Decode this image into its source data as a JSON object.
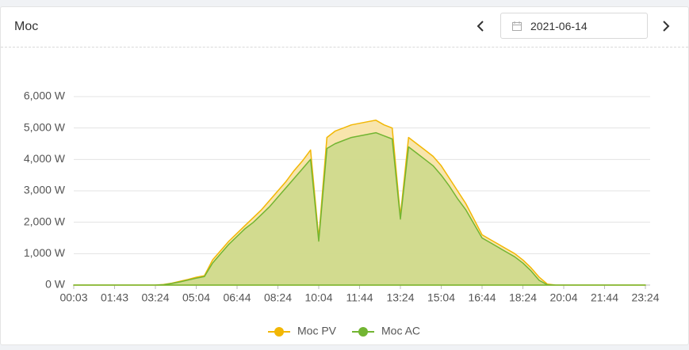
{
  "header": {
    "title": "Moc",
    "date": "2021-06-14"
  },
  "chart_data": {
    "type": "area",
    "categories": [
      "00:03",
      null,
      null,
      null,
      null,
      "01:43",
      null,
      null,
      null,
      null,
      "03:24",
      null,
      null,
      null,
      null,
      "05:04",
      null,
      null,
      null,
      null,
      "06:44",
      null,
      null,
      null,
      null,
      "08:24",
      null,
      null,
      null,
      null,
      "10:04",
      null,
      null,
      null,
      null,
      "11:44",
      null,
      null,
      null,
      null,
      "13:24",
      null,
      null,
      null,
      null,
      "15:04",
      null,
      null,
      null,
      null,
      "16:44",
      null,
      null,
      null,
      null,
      "18:24",
      null,
      null,
      null,
      null,
      "20:04",
      null,
      null,
      null,
      null,
      "21:44",
      null,
      null,
      null,
      null,
      "23:24"
    ],
    "series": [
      {
        "name": "Moc PV",
        "color": "#f2b705",
        "fill": "#f7e2a3",
        "values": [
          0,
          0,
          0,
          0,
          0,
          0,
          0,
          0,
          0,
          0,
          0,
          20,
          60,
          120,
          180,
          250,
          300,
          800,
          1100,
          1400,
          1650,
          1900,
          2150,
          2400,
          2700,
          3000,
          3300,
          3650,
          3950,
          4300,
          1500,
          4700,
          4900,
          5000,
          5100,
          5150,
          5200,
          5250,
          5100,
          5000,
          2200,
          4700,
          4500,
          4300,
          4100,
          3800,
          3400,
          3000,
          2600,
          2100,
          1600,
          1450,
          1300,
          1150,
          1000,
          800,
          550,
          250,
          30,
          0,
          0,
          0,
          0,
          0,
          0,
          0,
          0,
          0,
          0,
          0,
          0
        ]
      },
      {
        "name": "Moc AC",
        "color": "#72b532",
        "fill": "#cdd98c",
        "values": [
          0,
          0,
          0,
          0,
          0,
          0,
          0,
          0,
          0,
          0,
          0,
          10,
          50,
          100,
          160,
          220,
          270,
          700,
          1000,
          1300,
          1550,
          1800,
          2000,
          2250,
          2500,
          2800,
          3100,
          3400,
          3700,
          4000,
          1400,
          4350,
          4500,
          4600,
          4700,
          4750,
          4800,
          4850,
          4750,
          4650,
          2100,
          4400,
          4200,
          4000,
          3800,
          3500,
          3150,
          2750,
          2400,
          1950,
          1500,
          1350,
          1200,
          1050,
          900,
          700,
          450,
          150,
          10,
          0,
          0,
          0,
          0,
          0,
          0,
          0,
          0,
          0,
          0,
          0,
          0
        ]
      }
    ],
    "ylim": [
      0,
      6000
    ],
    "yticks": [
      {
        "value": 0,
        "label": "0 W"
      },
      {
        "value": 1000,
        "label": "1,000 W"
      },
      {
        "value": 2000,
        "label": "2,000 W"
      },
      {
        "value": 3000,
        "label": "3,000 W"
      },
      {
        "value": 4000,
        "label": "4,000 W"
      },
      {
        "value": 5000,
        "label": "5,000 W"
      },
      {
        "value": 6000,
        "label": "6,000 W"
      }
    ],
    "grid": true,
    "legend": "bottom"
  }
}
